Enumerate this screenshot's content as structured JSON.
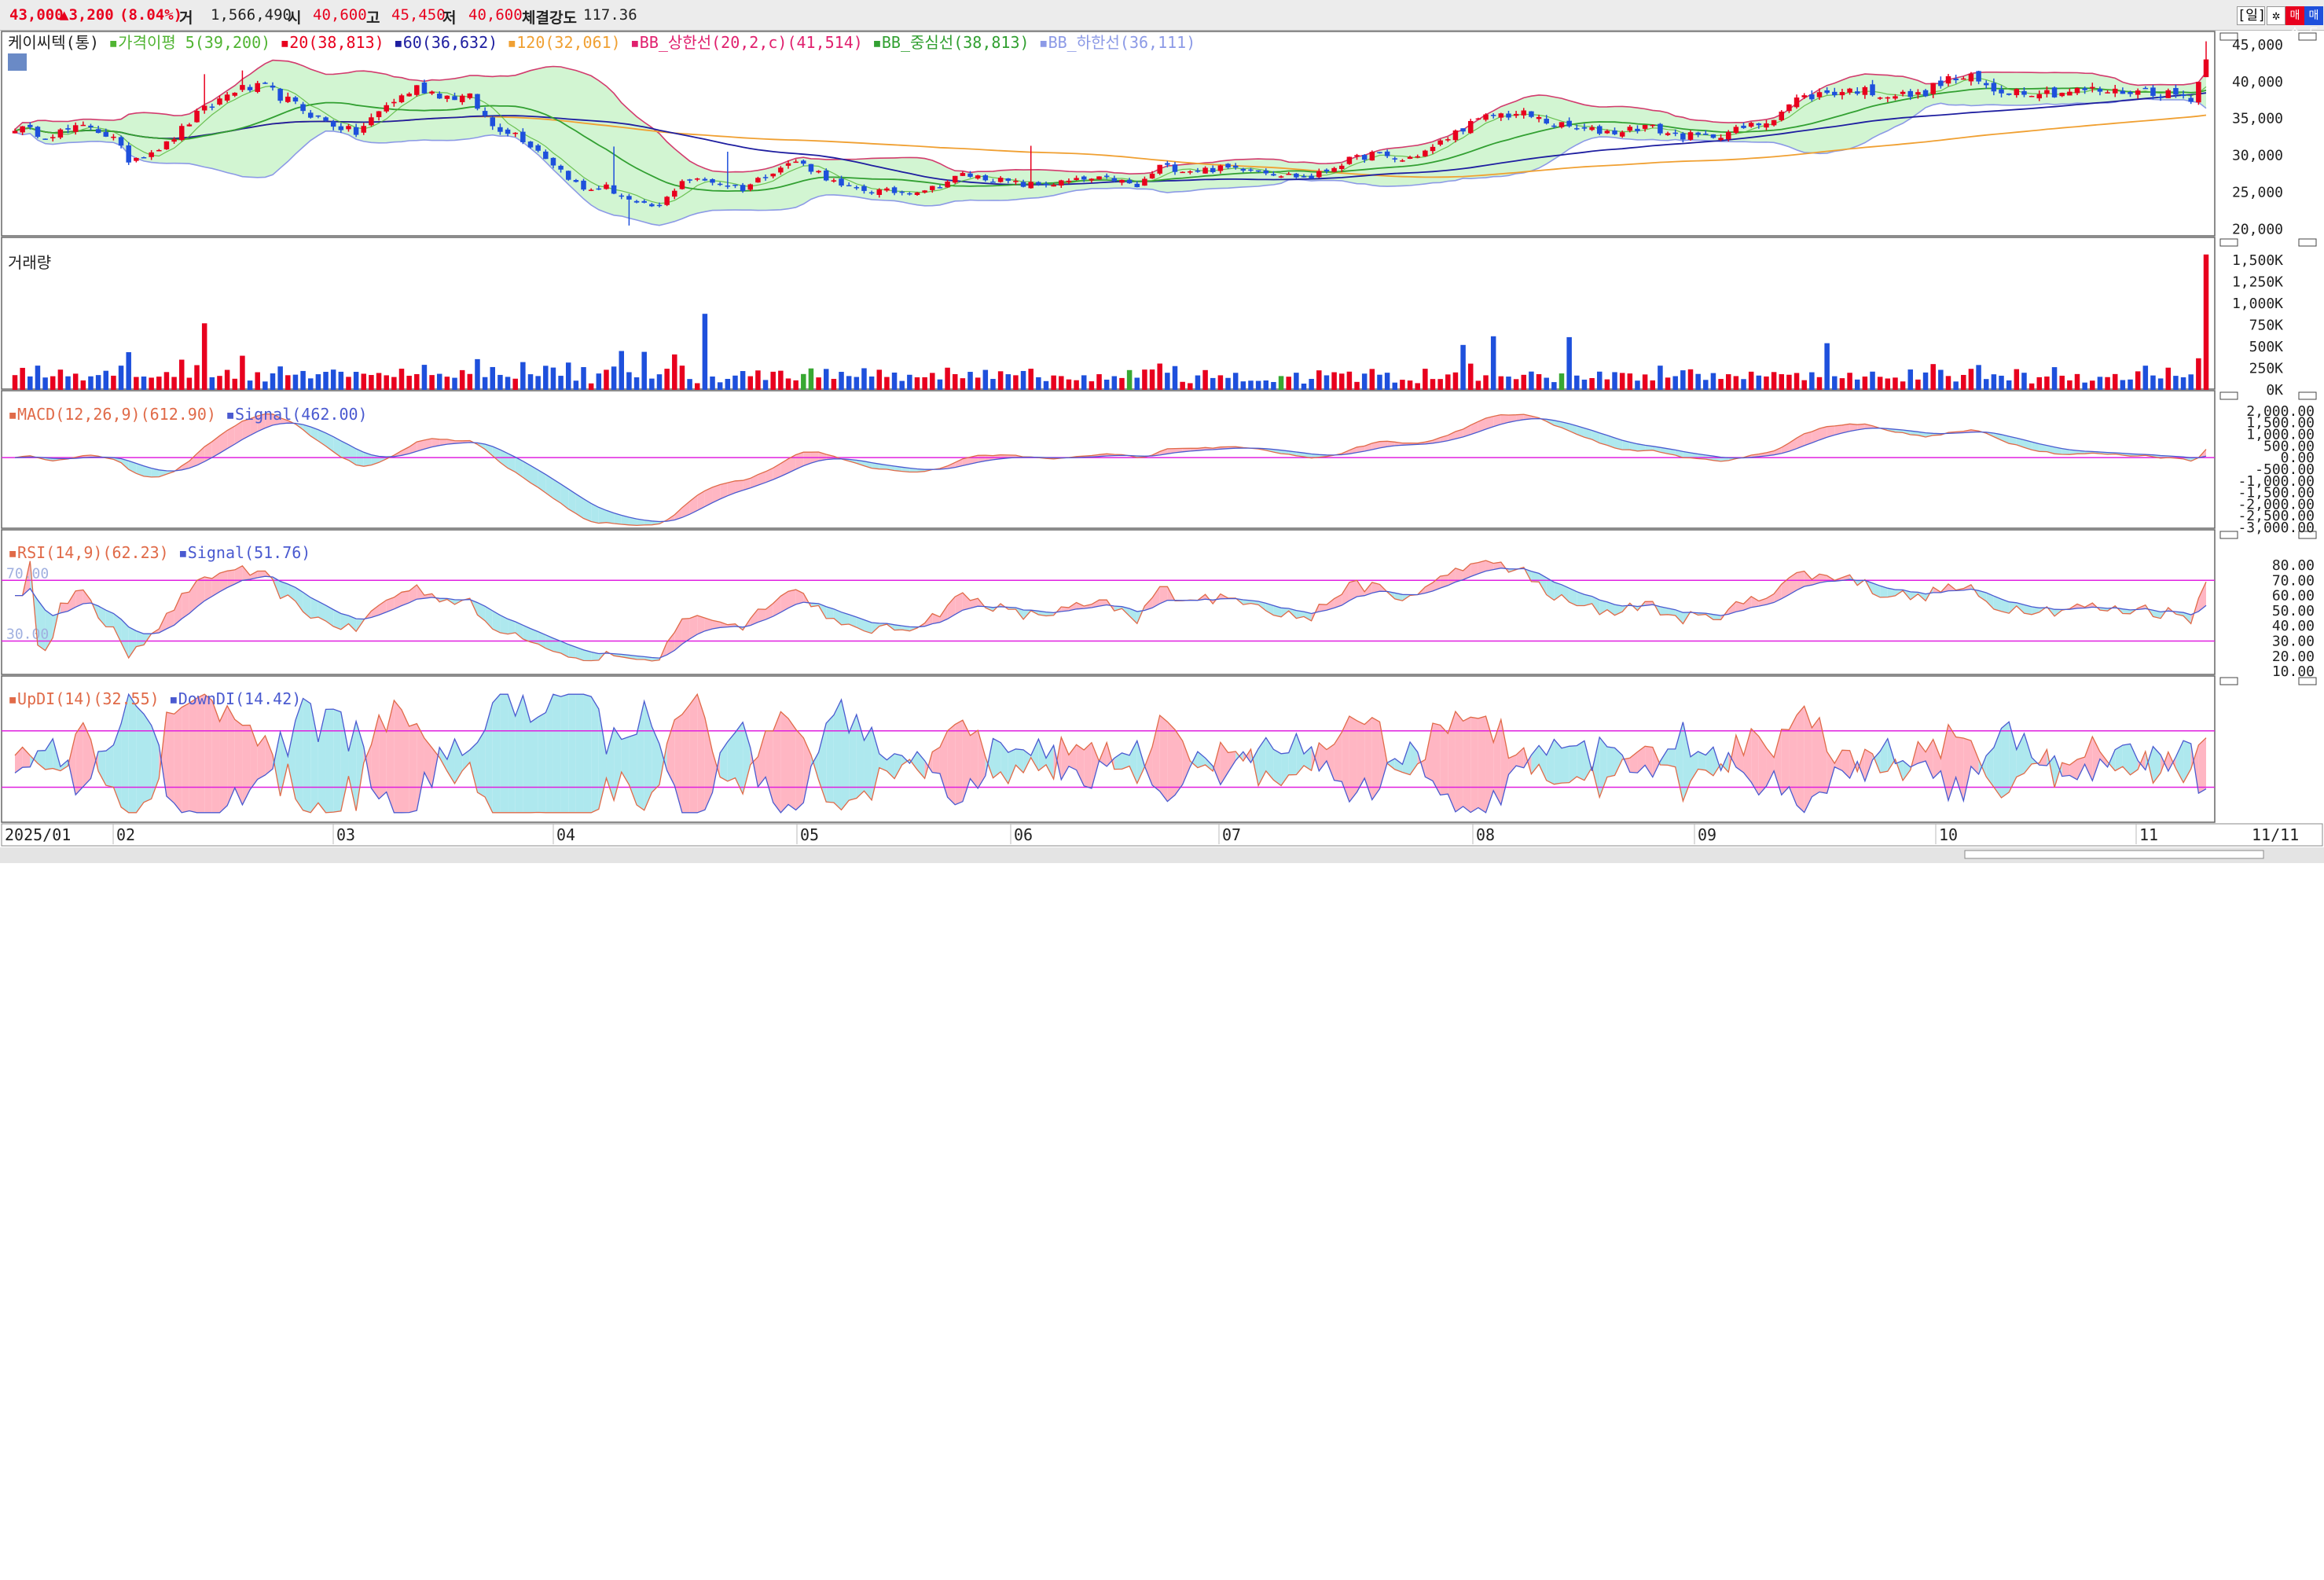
{
  "header": {
    "price": "43,000",
    "change": "▲3,200",
    "change_pct": "(8.04%)",
    "volume_label": "거",
    "volume_value": "1,566,490",
    "open_label": "시",
    "open_value": "40,600",
    "high_label": "고",
    "high_value": "45,450",
    "low_label": "저",
    "low_value": "40,600",
    "strength_label": "체결강도",
    "strength_value": "117.36",
    "period": "[일]",
    "buy": "매수",
    "sell": "매도"
  },
  "colors": {
    "up": "#e8001e",
    "down": "#1e50dc",
    "flat": "#38a832",
    "upfill": "#ffb6c3",
    "downfill": "#aee8ee",
    "bb": "#d2f5d2",
    "magenta": "#e020e0"
  },
  "chart_data": [
    {
      "type": "candlestick",
      "title": "케이씨텍(통)",
      "legend": [
        "가격이평 5(39,200)",
        "20(38,813)",
        "60(36,632)",
        "120(32,061)",
        "BB_상한선(20,2,c)(41,514)",
        "BB_중심선(38,813)",
        "BB_하한선(36,111)"
      ],
      "ylim": [
        19000,
        47000
      ],
      "ytick_labels": [
        "45,000",
        "40,000",
        "35,000",
        "30,000",
        "25,000",
        "20,000"
      ],
      "ytick_values": [
        45000,
        40000,
        35000,
        30000,
        25000,
        20000
      ],
      "x_labels": [
        "2025/01",
        "02",
        "03",
        "04",
        "05",
        "06",
        "07",
        "08",
        "09",
        "10",
        "11",
        "11/11"
      ],
      "close_anchors": [
        [
          0,
          33800
        ],
        [
          4,
          32800
        ],
        [
          10,
          34000
        ],
        [
          13,
          32200
        ],
        [
          15,
          29400
        ],
        [
          20,
          31500
        ],
        [
          24,
          35500
        ],
        [
          29,
          38900
        ],
        [
          33,
          39200
        ],
        [
          36,
          37400
        ],
        [
          40,
          35000
        ],
        [
          45,
          33000
        ],
        [
          49,
          36800
        ],
        [
          53,
          39200
        ],
        [
          57,
          38000
        ],
        [
          60,
          37800
        ],
        [
          63,
          34000
        ],
        [
          66,
          33000
        ],
        [
          69,
          30700
        ],
        [
          72,
          28000
        ],
        [
          75,
          25300
        ],
        [
          78,
          25700
        ],
        [
          80,
          24500
        ],
        [
          82,
          23300
        ],
        [
          85,
          23000
        ],
        [
          88,
          26700
        ],
        [
          92,
          26500
        ],
        [
          96,
          25500
        ],
        [
          100,
          28000
        ],
        [
          103,
          29200
        ],
        [
          106,
          27700
        ],
        [
          109,
          25700
        ],
        [
          113,
          25200
        ],
        [
          117,
          25000
        ],
        [
          121,
          25600
        ],
        [
          125,
          27400
        ],
        [
          129,
          26800
        ],
        [
          133,
          26000
        ],
        [
          137,
          26200
        ],
        [
          141,
          26700
        ],
        [
          145,
          26800
        ],
        [
          148,
          25700
        ],
        [
          151,
          28500
        ],
        [
          155,
          28000
        ],
        [
          159,
          28200
        ],
        [
          163,
          28400
        ],
        [
          167,
          27400
        ],
        [
          171,
          27000
        ],
        [
          175,
          29000
        ],
        [
          179,
          30200
        ],
        [
          183,
          29300
        ],
        [
          187,
          31000
        ],
        [
          191,
          33800
        ],
        [
          195,
          35500
        ],
        [
          199,
          35600
        ],
        [
          203,
          34200
        ],
        [
          207,
          33400
        ],
        [
          211,
          33200
        ],
        [
          215,
          34000
        ],
        [
          219,
          32700
        ],
        [
          223,
          32500
        ],
        [
          227,
          33400
        ],
        [
          231,
          34600
        ],
        [
          235,
          37600
        ],
        [
          239,
          38500
        ],
        [
          243,
          38900
        ],
        [
          247,
          38200
        ],
        [
          251,
          38100
        ],
        [
          255,
          40300
        ],
        [
          258,
          40400
        ],
        [
          261,
          38800
        ],
        [
          265,
          38800
        ],
        [
          269,
          38500
        ],
        [
          273,
          38900
        ],
        [
          277,
          38600
        ],
        [
          281,
          38800
        ],
        [
          285,
          38200
        ],
        [
          287,
          37800
        ],
        [
          288,
          40000
        ],
        [
          289,
          43000
        ]
      ],
      "volume": {
        "title": "거래량",
        "ylim": [
          0,
          1600000
        ],
        "ytick_labels": [
          "1,500K",
          "1,250K",
          "1,000K",
          "750K",
          "500K",
          "250K",
          "0K"
        ],
        "ytick_values": [
          1500000,
          1250000,
          1000000,
          750000,
          500000,
          250000,
          0
        ],
        "last": 1566490
      },
      "macd": {
        "title": "MACD(12,26,9)(612.90)",
        "signal": "Signal(462.00)",
        "ylim": [
          -3000,
          2300
        ],
        "ytick_labels": [
          "2,000.00",
          "1,500.00",
          "1,000.00",
          "500.00",
          "0.00",
          "-500.00",
          "-1,000.00",
          "-1,500.00",
          "-2,000.00",
          "-2,500.00",
          "-3,000.00"
        ],
        "ytick_values": [
          2000,
          1500,
          1000,
          500,
          0,
          -500,
          -1000,
          -1500,
          -2000,
          -2500,
          -3000
        ]
      },
      "rsi": {
        "title": "RSI(14,9)(62.23)",
        "signal": "Signal(51.76)",
        "ylim": [
          8,
          95
        ],
        "ytick_labels": [
          "80.00",
          "70.00",
          "60.00",
          "50.00",
          "40.00",
          "30.00",
          "20.00",
          "10.00"
        ],
        "ytick_values": [
          80,
          70,
          60,
          50,
          40,
          30,
          20,
          10
        ],
        "level_labels": [
          "70.00",
          "30.00"
        ]
      },
      "dmi": {
        "title": "UpDI(14)(32.55)",
        "down": "DownDI(14.42)",
        "ylim": [
          4,
          50
        ]
      }
    }
  ]
}
